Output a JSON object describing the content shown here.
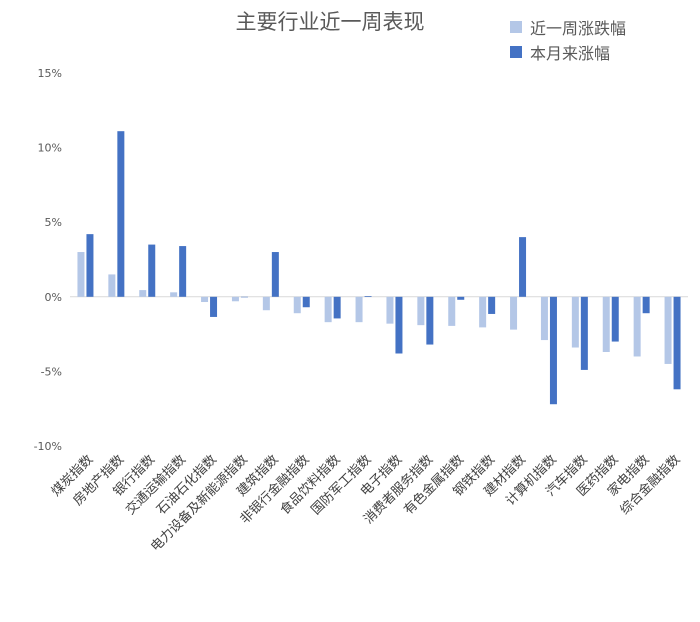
{
  "chart_data": {
    "type": "bar",
    "title": "主要行业近一周表现",
    "categories": [
      "煤炭指数",
      "房地产指数",
      "银行指数",
      "交通运输指数",
      "石油石化指数",
      "电力设备及新能源指数",
      "建筑指数",
      "非银行金融指数",
      "食品饮料指数",
      "国防军工指数",
      "电子指数",
      "消费者服务指数",
      "有色金属指数",
      "钢铁指数",
      "建材指数",
      "计算机指数",
      "汽车指数",
      "医药指数",
      "家电指数",
      "综合金融指数"
    ],
    "series": [
      {
        "name": "近一周涨跌幅",
        "color": "#b4c7e7",
        "values": [
          3.0,
          1.5,
          0.45,
          0.3,
          -0.35,
          -0.3,
          -0.9,
          -1.1,
          -1.7,
          -1.7,
          -1.8,
          -1.9,
          -1.95,
          -2.05,
          -2.2,
          -2.9,
          -3.4,
          -3.7,
          -4.0,
          -4.5
        ]
      },
      {
        "name": "本月来涨幅",
        "color": "#4472c4",
        "values": [
          4.2,
          11.1,
          3.5,
          3.4,
          -1.35,
          0.0,
          3.0,
          -0.7,
          -1.45,
          0.05,
          -3.8,
          -3.2,
          -0.2,
          -1.15,
          4.0,
          -7.2,
          -4.9,
          -3.0,
          -1.1,
          -6.2
        ]
      }
    ],
    "yticks": [
      "15%",
      "10%",
      "5%",
      "0%",
      "-5%",
      "-10%"
    ],
    "ylim": [
      -10,
      15
    ],
    "legend_position": "top-right",
    "grid": false
  }
}
